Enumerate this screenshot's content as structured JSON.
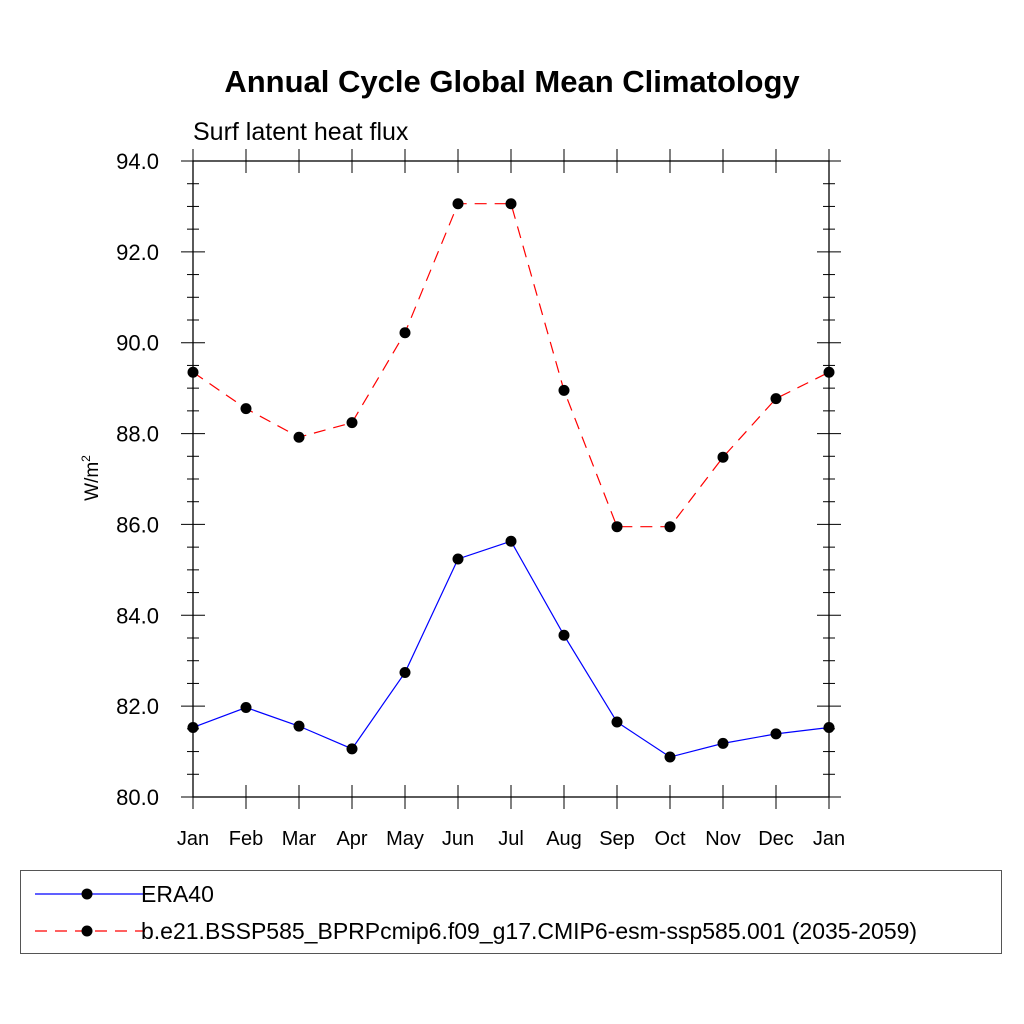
{
  "chart_data": {
    "type": "line",
    "title": "Annual Cycle Global Mean Climatology",
    "subtitle": "Surf latent heat flux",
    "ylabel_base": "W/m",
    "ylabel_sup": "2",
    "xlabel": "",
    "categories": [
      "Jan",
      "Feb",
      "Mar",
      "Apr",
      "May",
      "Jun",
      "Jul",
      "Aug",
      "Sep",
      "Oct",
      "Nov",
      "Dec",
      "Jan"
    ],
    "ylim": [
      80.0,
      94.0
    ],
    "yticks": [
      "80.0",
      "82.0",
      "84.0",
      "86.0",
      "88.0",
      "90.0",
      "92.0",
      "94.0"
    ],
    "grid": false,
    "series": [
      {
        "name": "ERA40",
        "color": "#0000ff",
        "dash": "solid",
        "values": [
          81.53,
          81.97,
          81.56,
          81.06,
          82.74,
          85.24,
          85.63,
          83.56,
          81.65,
          80.88,
          81.18,
          81.39,
          81.53
        ]
      },
      {
        "name": "b.e21.BSSP585_BPRPcmip6.f09_g17.CMIP6-esm-ssp585.001 (2035-2059)",
        "color": "#ff0000",
        "dash": "dashed",
        "values": [
          89.35,
          88.55,
          87.92,
          88.24,
          90.22,
          93.06,
          93.06,
          88.95,
          85.95,
          85.95,
          87.48,
          88.77,
          89.35
        ]
      }
    ],
    "legend_position": "bottom"
  }
}
